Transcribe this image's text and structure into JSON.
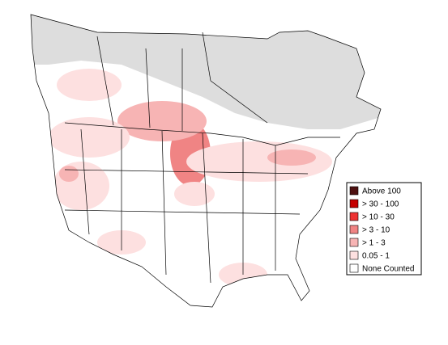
{
  "legend": {
    "items": [
      {
        "label": "Above 100",
        "color": "#4d1010"
      },
      {
        "label": "> 30 - 100",
        "color": "#c40000"
      },
      {
        "label": "> 10 - 30",
        "color": "#ee3333"
      },
      {
        "label": "> 3 - 10",
        "color": "#f08484"
      },
      {
        "label": "> 1 - 3",
        "color": "#f7b4b4"
      },
      {
        "label": "0.05 - 1",
        "color": "#fde0e0"
      },
      {
        "label": "None Counted",
        "color": "#ffffff"
      }
    ]
  }
}
